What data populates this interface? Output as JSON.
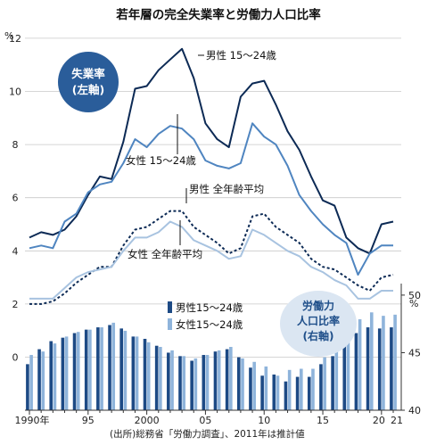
{
  "chart_data": {
    "title": "若年層の完全失業率と労働力人口比率",
    "source": "(出所)総務省「労働力調査」、2011年は推計値",
    "left_axis": {
      "unit": "%",
      "ticks": [
        "0",
        "2",
        "4",
        "6",
        "8",
        "10",
        "12"
      ],
      "range": [
        -2.5,
        12.5
      ]
    },
    "right_axis": {
      "unit": "%",
      "ticks": [
        "40",
        "45",
        "50"
      ],
      "range": [
        40,
        51
      ]
    },
    "x_labels": [
      "1990年",
      "95",
      "2000",
      "05",
      "10",
      "15",
      "20",
      "21"
    ],
    "years": [
      1990,
      1991,
      1992,
      1993,
      1994,
      1995,
      1996,
      1997,
      1998,
      1999,
      2000,
      2001,
      2002,
      2003,
      2004,
      2005,
      2006,
      2007,
      2008,
      2009,
      2010,
      2011,
      2012,
      2013,
      2014,
      2015,
      2016,
      2017,
      2018,
      2019,
      2020,
      2021
    ],
    "unemployment": {
      "type": "line",
      "badge": [
        "失業率",
        "(左軸)"
      ],
      "series": [
        {
          "name": "男性 15〜24歳",
          "color": "#0c2a55",
          "style": "solid",
          "values": [
            4.5,
            4.7,
            4.6,
            4.8,
            5.3,
            6.1,
            6.8,
            6.7,
            8.1,
            10.1,
            10.2,
            10.8,
            11.2,
            11.6,
            10.5,
            8.8,
            8.2,
            7.9,
            9.8,
            10.3,
            10.4,
            9.5,
            8.5,
            7.8,
            6.8,
            5.9,
            5.7,
            4.5,
            4.1,
            3.9,
            5.0,
            5.1
          ]
        },
        {
          "name": "女性 15〜24歳",
          "color": "#4f85c0",
          "style": "solid",
          "values": [
            4.1,
            4.2,
            4.1,
            5.1,
            5.4,
            6.2,
            6.5,
            6.6,
            7.3,
            8.2,
            7.9,
            8.4,
            8.7,
            8.6,
            8.2,
            7.4,
            7.2,
            7.1,
            7.3,
            8.8,
            8.3,
            8.0,
            7.2,
            6.1,
            5.5,
            5.0,
            4.6,
            4.3,
            3.1,
            3.9,
            4.2,
            4.2
          ]
        },
        {
          "name": "男性 全年齢平均",
          "color": "#0c2a55",
          "style": "dashed",
          "values": [
            2.0,
            2.0,
            2.1,
            2.4,
            2.8,
            3.1,
            3.4,
            3.4,
            4.2,
            4.8,
            4.9,
            5.2,
            5.5,
            5.5,
            4.9,
            4.6,
            4.3,
            3.9,
            4.1,
            5.3,
            5.4,
            4.9,
            4.6,
            4.3,
            3.7,
            3.4,
            3.3,
            3.0,
            2.7,
            2.5,
            3.0,
            3.1
          ]
        },
        {
          "name": "女性 全年齢平均",
          "color": "#a8c3e0",
          "style": "solid",
          "values": [
            2.2,
            2.2,
            2.2,
            2.6,
            3.0,
            3.2,
            3.3,
            3.4,
            4.0,
            4.5,
            4.5,
            4.7,
            5.1,
            4.9,
            4.4,
            4.2,
            4.0,
            3.7,
            3.8,
            4.8,
            4.6,
            4.3,
            4.0,
            3.8,
            3.4,
            3.2,
            2.9,
            2.7,
            2.2,
            2.2,
            2.5,
            2.5
          ]
        }
      ]
    },
    "participation": {
      "type": "bar",
      "badge": [
        "労働力",
        "人口比率",
        "(右軸)"
      ],
      "series": [
        {
          "name": "男性15〜24歳",
          "color": "#1d4a85",
          "values": [
            44.0,
            45.3,
            46.0,
            46.3,
            46.7,
            47.0,
            47.2,
            47.4,
            47.1,
            46.4,
            46.2,
            45.6,
            45.0,
            44.7,
            44.3,
            44.8,
            45.1,
            45.3,
            44.6,
            43.7,
            43.0,
            43.1,
            42.5,
            42.9,
            42.9,
            44.0,
            44.7,
            45.6,
            46.7,
            47.2,
            47.1,
            47.2
          ]
        },
        {
          "name": "女性15〜24歳",
          "color": "#8fb4db",
          "values": [
            44.8,
            45.1,
            45.8,
            46.4,
            46.8,
            47.0,
            47.2,
            47.6,
            46.9,
            46.4,
            45.9,
            45.5,
            45.2,
            44.7,
            44.5,
            44.8,
            45.2,
            45.5,
            44.5,
            44.2,
            43.8,
            43.0,
            43.5,
            43.6,
            43.6,
            44.6,
            45.1,
            46.8,
            47.9,
            48.5,
            48.2,
            48.3
          ]
        }
      ]
    }
  }
}
